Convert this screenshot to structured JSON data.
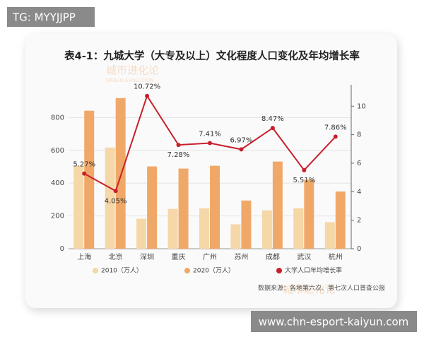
{
  "badge": "TG: MYYJJPP",
  "footer_url": "www.chn-esport-kaiyun.com",
  "watermark": "城市进化论",
  "watermark_sub": "URBAN EVOLUTION",
  "chart_data": {
    "type": "bar-line",
    "title": "表4-1：九城大学（大专及以上）文化程度人口变化及年均增长率",
    "categories": [
      "上海",
      "北京",
      "深圳",
      "重庆",
      "广州",
      "苏州",
      "成都",
      "武汉",
      "杭州"
    ],
    "series": [
      {
        "name": "2010（万人）",
        "color": "#f5d7a8",
        "type": "bar",
        "values": [
          505,
          617,
          183,
          243,
          247,
          149,
          234,
          247,
          162
        ]
      },
      {
        "name": "2020（万人）",
        "color": "#f0a868",
        "type": "bar",
        "values": [
          842,
          919,
          502,
          489,
          506,
          294,
          532,
          421,
          349
        ]
      },
      {
        "name": "大学人口年均增长率",
        "color": "#c8202c",
        "type": "line",
        "axis": "y2",
        "values": [
          5.27,
          4.05,
          10.72,
          7.28,
          7.41,
          6.97,
          8.47,
          5.51,
          7.86
        ],
        "value_labels": [
          "5.27%",
          "4.05%",
          "10.72%",
          "7.28%",
          "7.41%",
          "6.97%",
          "8.47%",
          "5.51%",
          "7.86%"
        ]
      }
    ],
    "ylim": [
      0,
      1000
    ],
    "yticks": [
      0,
      200,
      400,
      600,
      800
    ],
    "y2lim": [
      0,
      11.5
    ],
    "y2ticks": [
      0,
      2,
      4,
      6,
      8,
      10
    ],
    "grid": true,
    "source": "数据来源：各地第六次、第七次人口普查公报"
  }
}
